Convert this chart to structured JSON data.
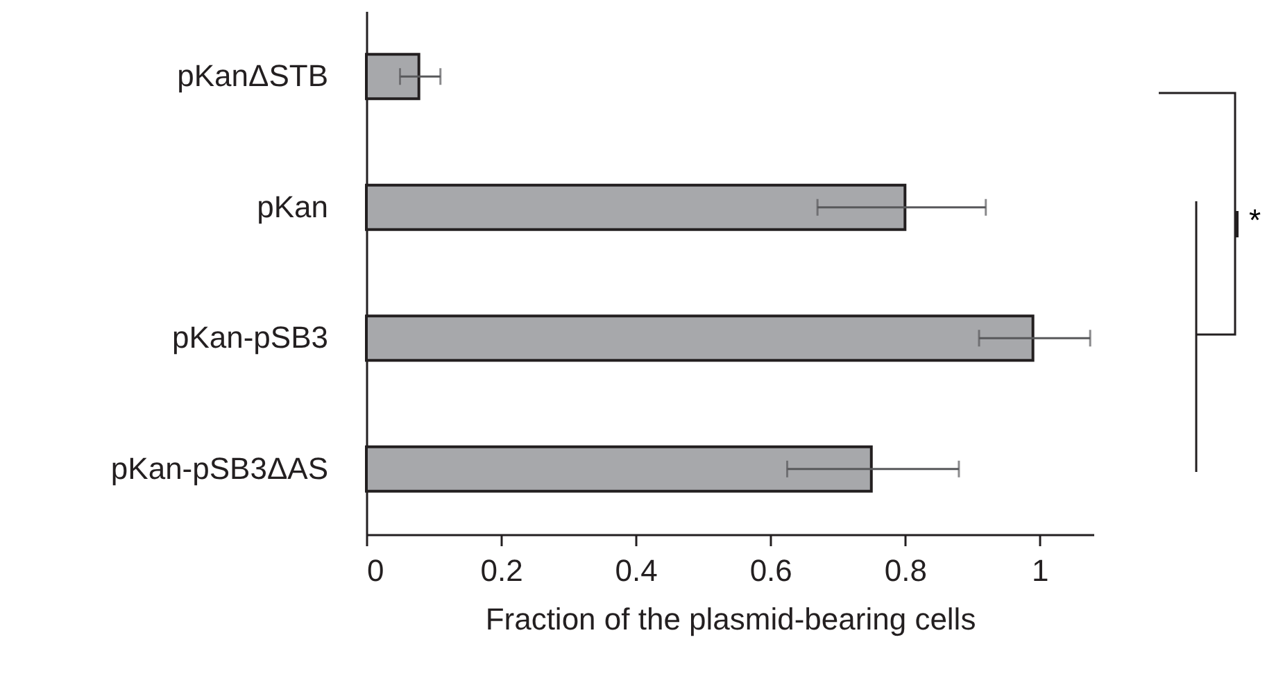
{
  "chart_data": {
    "type": "bar",
    "orientation": "horizontal",
    "xlabel": "Fraction of the plasmid-bearing cells",
    "categories": [
      "pKanΔSTB",
      "pKan",
      "pKan-pSB3",
      "pKan-pSB3ΔAS"
    ],
    "values": [
      0.078,
      0.8,
      0.99,
      0.75
    ],
    "errors": [
      [
        0.05,
        0.11
      ],
      [
        0.67,
        0.92
      ],
      [
        0.91,
        1.075
      ],
      [
        0.625,
        0.88
      ]
    ],
    "color": "#a7a8ab",
    "xlim": [
      0,
      1.08
    ],
    "xticks": [
      0,
      0.2,
      0.4,
      0.6,
      0.8,
      1
    ],
    "annotations": [
      "*"
    ]
  }
}
